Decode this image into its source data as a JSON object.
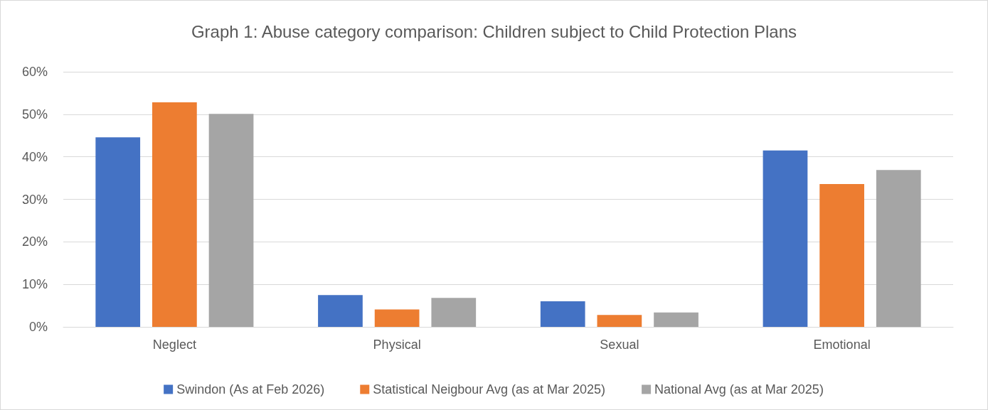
{
  "chart_data": {
    "type": "bar",
    "title": "Graph 1: Abuse category comparison: Children subject to Child Protection Plans",
    "categories": [
      "Neglect",
      "Physical",
      "Sexual",
      "Emotional"
    ],
    "series": [
      {
        "name": "Swindon (As at Feb 2026)",
        "color": "#4472c4",
        "values": [
          44.6,
          7.5,
          6.0,
          41.5
        ]
      },
      {
        "name": "Statistical Neigbour Avg (as at Mar 2025)",
        "color": "#ed7d31",
        "values": [
          52.8,
          4.1,
          2.8,
          33.6
        ]
      },
      {
        "name": "National Avg (as at Mar 2025)",
        "color": "#a5a5a5",
        "values": [
          50.1,
          6.8,
          3.4,
          36.9
        ]
      }
    ],
    "ylim": [
      0,
      60
    ],
    "yticks": [
      {
        "value": 0,
        "label": "0%"
      },
      {
        "value": 10,
        "label": "10%"
      },
      {
        "value": 20,
        "label": "20%"
      },
      {
        "value": 30,
        "label": "30%"
      },
      {
        "value": 40,
        "label": "40%"
      },
      {
        "value": 50,
        "label": "50%"
      },
      {
        "value": 60,
        "label": "60%"
      }
    ],
    "grid": "y",
    "legend": "bottom"
  }
}
